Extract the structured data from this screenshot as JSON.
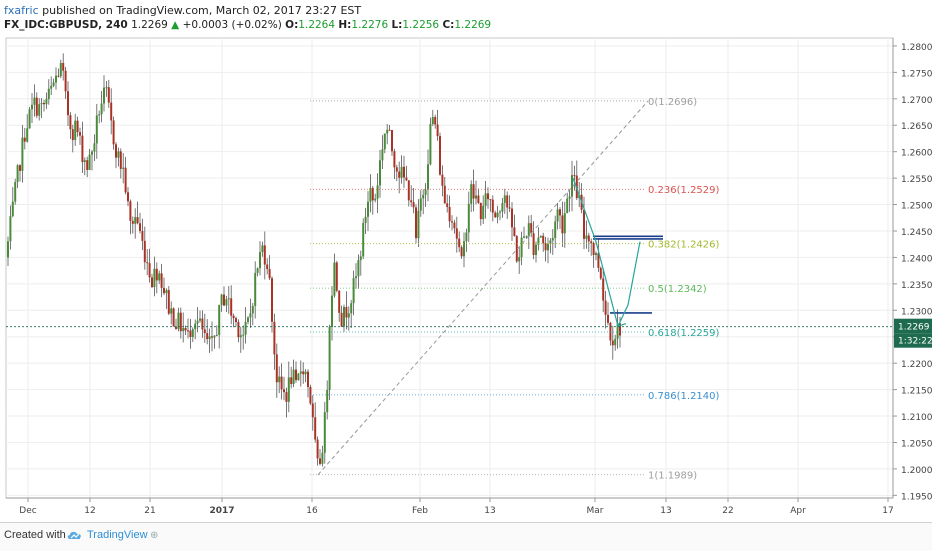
{
  "header": {
    "author": "fxafric",
    "published": "published on TradingView.com, March 02, 2017 23:27 EST",
    "symbol": "FX_IDC:GBPUSD, 240",
    "last": "1.2269",
    "change_arrow": "▲",
    "change": "+0.0003 (+0.02%)",
    "o_label": "O:",
    "o": "1.2264",
    "h_label": "H:",
    "h": "1.2276",
    "l_label": "L:",
    "l": "1.2256",
    "c_label": "C:",
    "c": "1.2269"
  },
  "footer": {
    "created_with": "Created with",
    "brand": "TradingView",
    "logo_icon": "tradingview-cloud-icon",
    "share_icon": "share-icon"
  },
  "colors": {
    "candle_up": "#4b8a3a",
    "candle_down": "#a93226",
    "wick": "#555555",
    "price_marker": "#1f6b4f",
    "fib_0": "#9e9e9e",
    "fib_236": "#d9534f",
    "fib_382": "#a4b82a",
    "fib_5": "#5cb85c",
    "fib_618": "#26a69a",
    "fib_786": "#3b8fd0",
    "fib_1": "#9e9e9e",
    "pattern": "#26a69a",
    "trend": "#1a3e8c"
  },
  "chart_data": {
    "type": "candlestick",
    "title": "FX_IDC:GBPUSD, 240",
    "y_axis": {
      "min": 1.193,
      "max": 1.283,
      "ticks": [
        "1.1950",
        "1.2000",
        "1.2050",
        "1.2100",
        "1.2150",
        "1.2200",
        "1.2250",
        "1.2300",
        "1.2350",
        "1.2400",
        "1.2450",
        "1.2500",
        "1.2550",
        "1.2600",
        "1.2650",
        "1.2700",
        "1.2750",
        "1.2800"
      ]
    },
    "x_axis": {
      "ticks": [
        {
          "label": "Dec",
          "bold": false
        },
        {
          "label": "12",
          "bold": false
        },
        {
          "label": "21",
          "bold": false
        },
        {
          "label": "2017",
          "bold": true
        },
        {
          "label": "16",
          "bold": false
        },
        {
          "label": "Feb",
          "bold": false
        },
        {
          "label": "13",
          "bold": false
        },
        {
          "label": "Mar",
          "bold": false
        },
        {
          "label": "13",
          "bold": false
        },
        {
          "label": "22",
          "bold": false
        },
        {
          "label": "Apr",
          "bold": false
        },
        {
          "label": "17",
          "bold": false
        }
      ]
    },
    "price_path": [
      [
        0,
        1.24
      ],
      [
        6,
        1.248
      ],
      [
        12,
        1.256
      ],
      [
        20,
        1.265
      ],
      [
        28,
        1.269
      ],
      [
        36,
        1.268
      ],
      [
        44,
        1.271
      ],
      [
        52,
        1.275
      ],
      [
        56,
        1.276
      ],
      [
        60,
        1.269
      ],
      [
        66,
        1.264
      ],
      [
        70,
        1.265
      ],
      [
        76,
        1.26
      ],
      [
        82,
        1.257
      ],
      [
        88,
        1.262
      ],
      [
        94,
        1.269
      ],
      [
        100,
        1.271
      ],
      [
        106,
        1.264
      ],
      [
        112,
        1.259
      ],
      [
        118,
        1.256
      ],
      [
        124,
        1.246
      ],
      [
        130,
        1.248
      ],
      [
        136,
        1.243
      ],
      [
        140,
        1.24
      ],
      [
        146,
        1.236
      ],
      [
        152,
        1.238
      ],
      [
        158,
        1.234
      ],
      [
        164,
        1.23
      ],
      [
        170,
        1.228
      ],
      [
        176,
        1.227
      ],
      [
        182,
        1.225
      ],
      [
        188,
        1.229
      ],
      [
        194,
        1.227
      ],
      [
        200,
        1.224
      ],
      [
        206,
        1.223
      ],
      [
        212,
        1.228
      ],
      [
        216,
        1.232
      ],
      [
        220,
        1.233
      ],
      [
        226,
        1.229
      ],
      [
        232,
        1.227
      ],
      [
        238,
        1.225
      ],
      [
        244,
        1.229
      ],
      [
        250,
        1.237
      ],
      [
        256,
        1.242
      ],
      [
        262,
        1.239
      ],
      [
        266,
        1.229
      ],
      [
        270,
        1.218
      ],
      [
        274,
        1.215
      ],
      [
        280,
        1.214
      ],
      [
        286,
        1.218
      ],
      [
        290,
        1.215
      ],
      [
        296,
        1.22
      ],
      [
        300,
        1.218
      ],
      [
        304,
        1.214
      ],
      [
        308,
        1.206
      ],
      [
        312,
        1.1995
      ],
      [
        316,
        1.204
      ],
      [
        320,
        1.211
      ],
      [
        324,
        1.23
      ],
      [
        328,
        1.239
      ],
      [
        332,
        1.233
      ],
      [
        336,
        1.228
      ],
      [
        340,
        1.23
      ],
      [
        346,
        1.233
      ],
      [
        350,
        1.236
      ],
      [
        356,
        1.243
      ],
      [
        360,
        1.249
      ],
      [
        364,
        1.253
      ],
      [
        368,
        1.25
      ],
      [
        372,
        1.255
      ],
      [
        376,
        1.261
      ],
      [
        380,
        1.265
      ],
      [
        384,
        1.262
      ],
      [
        388,
        1.259
      ],
      [
        394,
        1.256
      ],
      [
        400,
        1.254
      ],
      [
        406,
        1.251
      ],
      [
        410,
        1.243
      ],
      [
        414,
        1.25
      ],
      [
        420,
        1.255
      ],
      [
        424,
        1.264
      ],
      [
        428,
        1.267
      ],
      [
        432,
        1.261
      ],
      [
        436,
        1.253
      ],
      [
        440,
        1.25
      ],
      [
        446,
        1.248
      ],
      [
        450,
        1.245
      ],
      [
        456,
        1.238
      ],
      [
        460,
        1.246
      ],
      [
        464,
        1.253
      ],
      [
        470,
        1.251
      ],
      [
        476,
        1.248
      ],
      [
        482,
        1.252
      ],
      [
        488,
        1.248
      ],
      [
        494,
        1.25
      ],
      [
        498,
        1.253
      ],
      [
        504,
        1.247
      ],
      [
        508,
        1.244
      ],
      [
        512,
        1.239
      ],
      [
        516,
        1.243
      ],
      [
        522,
        1.246
      ],
      [
        528,
        1.242
      ],
      [
        534,
        1.245
      ],
      [
        540,
        1.241
      ],
      [
        546,
        1.244
      ],
      [
        552,
        1.249
      ],
      [
        556,
        1.246
      ],
      [
        562,
        1.252
      ],
      [
        566,
        1.255
      ],
      [
        570,
        1.253
      ],
      [
        574,
        1.25
      ],
      [
        578,
        1.244
      ],
      [
        582,
        1.245
      ],
      [
        588,
        1.241
      ],
      [
        594,
        1.238
      ],
      [
        600,
        1.229
      ],
      [
        606,
        1.225
      ],
      [
        610,
        1.226
      ],
      [
        614,
        1.2269
      ]
    ],
    "current_price": {
      "label": "1.2269",
      "value": 1.2269,
      "countdown": "1:32:22"
    },
    "fibonacci": [
      {
        "label": "0(1.2696)",
        "value": 1.2696,
        "key": "fib_0"
      },
      {
        "label": "0.236(1.2529)",
        "value": 1.2529,
        "key": "fib_236"
      },
      {
        "label": "0.382(1.2426)",
        "value": 1.2426,
        "key": "fib_382"
      },
      {
        "label": "0.5(1.2342)",
        "value": 1.2342,
        "key": "fib_5"
      },
      {
        "label": "0.618(1.2259)",
        "value": 1.2259,
        "key": "fib_618"
      },
      {
        "label": "0.786(1.2140)",
        "value": 1.214,
        "key": "fib_786"
      },
      {
        "label": "1(1.1989)",
        "value": 1.1989,
        "key": "fib_1"
      }
    ],
    "fib_diagonal": {
      "from": [
        312,
        1.1989
      ],
      "to": [
        642,
        1.2696
      ]
    },
    "resistance_lines": [
      {
        "from": [
          587,
          1.244
        ],
        "to": [
          657,
          1.244
        ]
      },
      {
        "from": [
          587,
          1.2435
        ],
        "to": [
          657,
          1.2435
        ]
      },
      {
        "from": [
          604,
          1.2295
        ],
        "to": [
          646,
          1.2295
        ]
      }
    ],
    "pattern": [
      [
        567,
        1.255
      ],
      [
        590,
        1.243
      ],
      [
        612,
        1.227
      ],
      [
        622,
        1.231
      ],
      [
        634,
        1.243
      ]
    ],
    "pattern2": [
      [
        612,
        1.227
      ],
      [
        620,
        1.2275
      ]
    ]
  }
}
